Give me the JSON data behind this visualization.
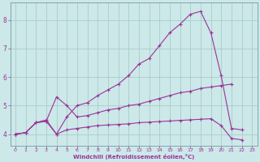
{
  "title": "",
  "xlabel": "Windchill (Refroidissement éolien,°C)",
  "ylabel": "",
  "bg_color": "#cce8e8",
  "grid_color": "#aacccc",
  "line_color": "#993399",
  "xlim": [
    -0.5,
    23.5
  ],
  "ylim": [
    3.6,
    8.6
  ],
  "yticks": [
    4,
    5,
    6,
    7,
    8
  ],
  "xticks": [
    0,
    1,
    2,
    3,
    4,
    5,
    6,
    7,
    8,
    9,
    10,
    11,
    12,
    13,
    14,
    15,
    16,
    17,
    18,
    19,
    20,
    21,
    22,
    23
  ],
  "series": [
    {
      "x": [
        0,
        1,
        2,
        3,
        4,
        5,
        6,
        7,
        8,
        9,
        10,
        11,
        12,
        13,
        14,
        15,
        16,
        17,
        18,
        19,
        20,
        21,
        22
      ],
      "y": [
        4.0,
        4.05,
        4.4,
        4.5,
        4.0,
        4.6,
        5.0,
        5.1,
        5.35,
        5.55,
        5.75,
        6.05,
        6.45,
        6.65,
        7.1,
        7.55,
        7.85,
        8.2,
        8.3,
        7.55,
        6.05,
        4.2,
        4.15
      ]
    },
    {
      "x": [
        0,
        1,
        2,
        3,
        4,
        5,
        6,
        7,
        8,
        9,
        10,
        11,
        12,
        13,
        14,
        15,
        16,
        17,
        18,
        19,
        20,
        21
      ],
      "y": [
        4.0,
        4.05,
        4.4,
        4.45,
        5.3,
        5.0,
        4.6,
        4.65,
        4.75,
        4.85,
        4.9,
        5.0,
        5.05,
        5.15,
        5.25,
        5.35,
        5.45,
        5.5,
        5.6,
        5.65,
        5.7,
        5.75
      ]
    },
    {
      "x": [
        0,
        1,
        2,
        3,
        4,
        5,
        6,
        7,
        8,
        9,
        10,
        11,
        12,
        13,
        14,
        15,
        16,
        17,
        18,
        19,
        20,
        21,
        22
      ],
      "y": [
        4.0,
        4.05,
        4.4,
        4.45,
        4.0,
        4.15,
        4.2,
        4.25,
        4.3,
        4.32,
        4.34,
        4.36,
        4.4,
        4.42,
        4.44,
        4.46,
        4.48,
        4.5,
        4.52,
        4.54,
        4.3,
        3.85,
        3.8
      ]
    }
  ]
}
